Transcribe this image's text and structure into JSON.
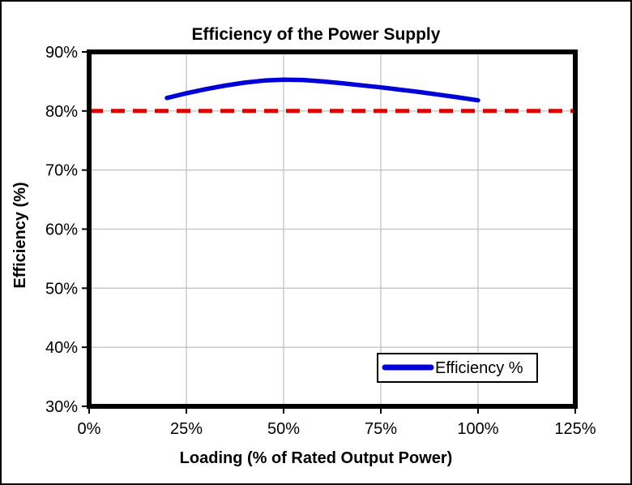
{
  "window": {
    "background_color": "#ffffff",
    "outer_border_color": "#000000"
  },
  "chart_data": {
    "type": "line",
    "title": "Efficiency of the Power Supply",
    "xlabel": "Loading (% of Rated Output Power)",
    "ylabel": "Efficiency (%)",
    "xlim": [
      0,
      125
    ],
    "ylim": [
      30,
      90
    ],
    "x_ticks": [
      0,
      25,
      50,
      75,
      100,
      125
    ],
    "x_tick_labels": [
      "0%",
      "25%",
      "50%",
      "75%",
      "100%",
      "125%"
    ],
    "y_ticks": [
      30,
      40,
      50,
      60,
      70,
      80,
      90
    ],
    "y_tick_labels": [
      "30%",
      "40%",
      "50%",
      "60%",
      "70%",
      "80%",
      "90%"
    ],
    "grid": true,
    "gridline_color": "#c4c4c4",
    "plot_border_color": "#000000",
    "legend": {
      "position": "bottom-right",
      "label": "Efficiency %"
    },
    "series": [
      {
        "name": "Efficiency %",
        "color": "#0000d9",
        "style": "solid",
        "x": [
          20,
          25,
          30,
          35,
          40,
          45,
          50,
          55,
          60,
          65,
          70,
          75,
          80,
          85,
          90,
          95,
          100
        ],
        "y": [
          82.2,
          83.0,
          83.7,
          84.3,
          84.8,
          85.15,
          85.3,
          85.25,
          85.0,
          84.7,
          84.35,
          84.0,
          83.6,
          83.2,
          82.75,
          82.3,
          81.8
        ]
      }
    ],
    "reference_line": {
      "y": 80,
      "color": "#e00000",
      "style": "dashed"
    }
  }
}
